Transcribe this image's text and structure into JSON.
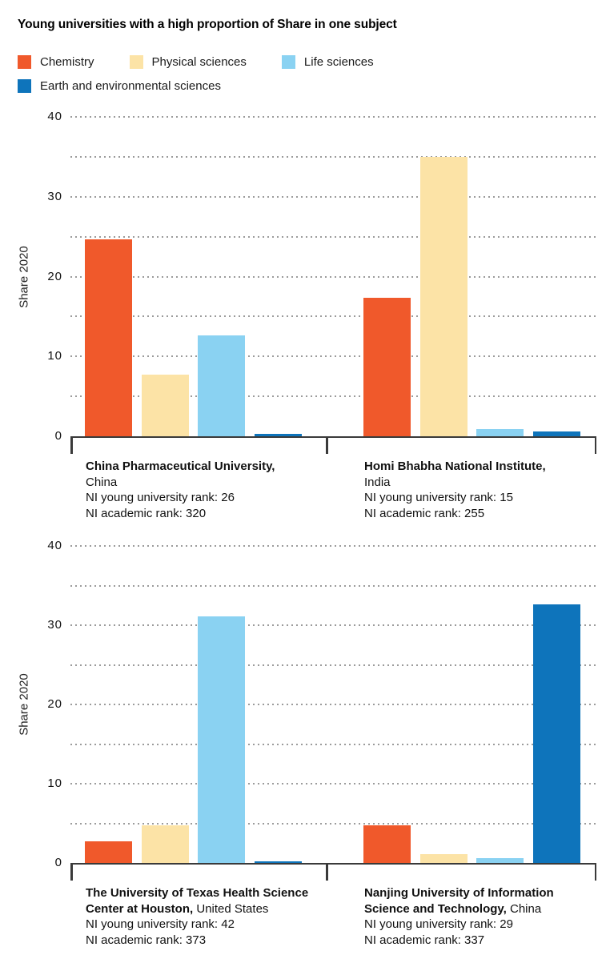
{
  "title": "Young universities with a high proportion of Share in one subject",
  "legend": {
    "items": [
      {
        "label": "Chemistry",
        "color": "#F0592B"
      },
      {
        "label": "Physical sciences",
        "color": "#FCE3A6"
      },
      {
        "label": "Life sciences",
        "color": "#8AD2F2"
      },
      {
        "label": "Earth and environmental sciences",
        "color": "#0E74BB"
      }
    ]
  },
  "colors": {
    "grid": "#9B9B9B",
    "axis": "#3A3A3A",
    "text": "#111111"
  },
  "chart_data": {
    "type": "bar",
    "title": "Young universities with a high proportion of Share in one subject",
    "ylabel": "Share 2020",
    "ylim": [
      0,
      40
    ],
    "yticks": [
      0,
      10,
      20,
      30,
      40
    ],
    "grid_step": 5,
    "grid": "dotted horizontal",
    "legend_position": "top",
    "series": [
      "Chemistry",
      "Physical sciences",
      "Life sciences",
      "Earth and environmental sciences"
    ],
    "series_colors": [
      "#F0592B",
      "#FCE3A6",
      "#8AD2F2",
      "#0E74BB"
    ],
    "panels": [
      {
        "groups": [
          {
            "label": "China Pharmaceutical University, China",
            "rank_lines": [
              "NI young university rank: 26",
              "NI academic rank: 320"
            ],
            "values": [
              24.7,
              7.7,
              12.6,
              0.3
            ],
            "label_lines": [
              [
                {
                  "t": "China Pharmaceutical University,",
                  "b": true
                }
              ],
              [
                {
                  "t": "China",
                  "b": false
                }
              ],
              [
                {
                  "t": "NI young university rank: 26",
                  "b": false
                }
              ],
              [
                {
                  "t": "NI academic rank: 320",
                  "b": false
                }
              ]
            ]
          },
          {
            "label": "Homi Bhabha National Institute, India",
            "rank_lines": [
              "NI young university rank: 15",
              "NI academic rank: 255"
            ],
            "values": [
              17.3,
              35,
              0.9,
              0.6
            ],
            "label_lines": [
              [
                {
                  "t": "Homi Bhabha National Institute,",
                  "b": true
                }
              ],
              [
                {
                  "t": "India",
                  "b": false
                }
              ],
              [
                {
                  "t": "NI young university rank: 15",
                  "b": false
                }
              ],
              [
                {
                  "t": "NI academic rank: 255",
                  "b": false
                }
              ]
            ]
          }
        ]
      },
      {
        "groups": [
          {
            "label": "The University of Texas Health Science Center at Houston, United States",
            "rank_lines": [
              "NI young university rank: 42",
              "NI academic rank: 373"
            ],
            "values": [
              2.7,
              4.7,
              31.1,
              0.2
            ],
            "label_lines": [
              [
                {
                  "t": "The University of Texas Health Science",
                  "b": true
                }
              ],
              [
                {
                  "t": "Center at Houston,",
                  "b": true
                },
                {
                  "t": " United States",
                  "b": false
                }
              ],
              [
                {
                  "t": "NI young university rank: 42",
                  "b": false
                }
              ],
              [
                {
                  "t": "NI academic rank: 373",
                  "b": false
                }
              ]
            ]
          },
          {
            "label": "Nanjing University of Information Science and Technology, China",
            "rank_lines": [
              "NI young university rank: 29",
              "NI academic rank: 337"
            ],
            "values": [
              4.7,
              1.1,
              0.6,
              32.6
            ],
            "label_lines": [
              [
                {
                  "t": "Nanjing University of Information",
                  "b": true
                }
              ],
              [
                {
                  "t": "Science and Technology,",
                  "b": true
                },
                {
                  "t": " China",
                  "b": false
                }
              ],
              [
                {
                  "t": "NI young university rank: 29",
                  "b": false
                }
              ],
              [
                {
                  "t": "NI academic rank: 337",
                  "b": false
                }
              ]
            ]
          }
        ]
      }
    ]
  }
}
